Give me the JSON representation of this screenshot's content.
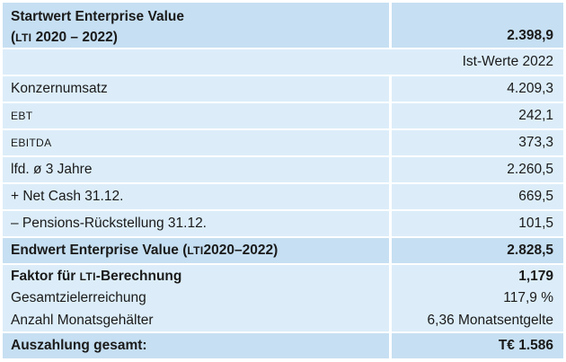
{
  "colors": {
    "row_dark": "#c6dff2",
    "row_light": "#dcedf9",
    "separator": "#ffffff",
    "text": "#1a1a1a"
  },
  "typography": {
    "smallcaps_tokens": [
      "EBITDA",
      "EBT",
      "LTI"
    ]
  },
  "table": {
    "header": {
      "label_line1": "Startwert Enterprise Value",
      "label_line2": "(LTI 2020 – 2022)",
      "value": "2.398,9"
    },
    "subheader": {
      "value": "Ist-Werte 2022"
    },
    "body": [
      {
        "label": "Konzernumsatz",
        "value": "4.209,3"
      },
      {
        "label": "EBT",
        "value": "242,1"
      },
      {
        "label": "EBITDA",
        "value": "373,3"
      },
      {
        "label": "lfd. ø 3 Jahre",
        "value": "2.260,5"
      },
      {
        "label": "+ Net Cash 31.12.",
        "value": "669,5"
      },
      {
        "label": "– Pensions-Rückstellung 31.12.",
        "value": "101,5"
      }
    ],
    "endwert": {
      "label": "Endwert Enterprise Value (LTI 2020–2022)",
      "value": "2.828,5"
    },
    "calc": [
      {
        "label": "Faktor für LTI-Berechnung",
        "value": "1,179"
      },
      {
        "label": "Gesamtzielerreichung",
        "value": "117,9 %"
      },
      {
        "label": "Anzahl Monatsgehälter",
        "value": "6,36 Monatsentgelte"
      }
    ],
    "total": {
      "label": "Auszahlung gesamt:",
      "value": "T€ 1.586"
    }
  }
}
